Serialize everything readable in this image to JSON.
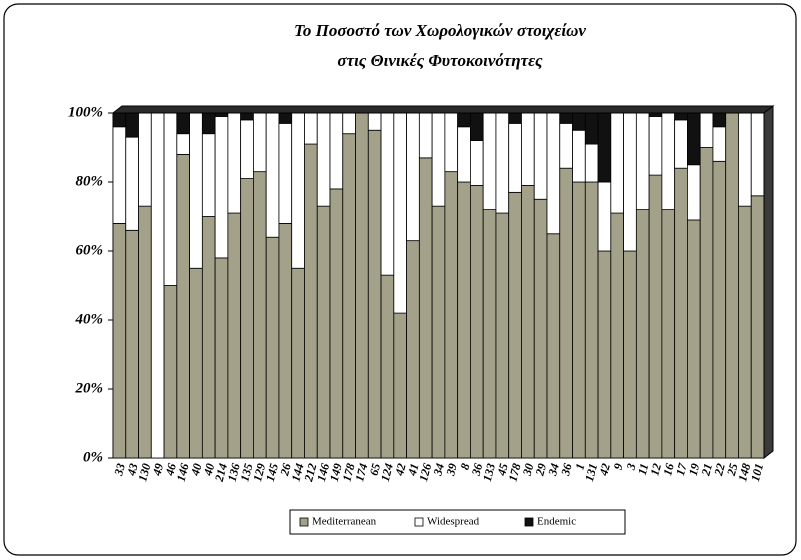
{
  "chart_data": {
    "type": "stacked_bar",
    "title": "Το Ποσοστό των Χωρολογικών στοιχείων",
    "subtitle": "στις Θινικές Φυτοκοινότητες",
    "categories": [
      "33",
      "43",
      "130",
      "49",
      "46",
      "146",
      "40",
      "40",
      "214",
      "136",
      "135",
      "129",
      "145",
      "26",
      "144",
      "212",
      "146",
      "149",
      "178",
      "174",
      "65",
      "124",
      "42",
      "41",
      "126",
      "34",
      "39",
      "8",
      "36",
      "133",
      "45",
      "178",
      "30",
      "29",
      "34",
      "36",
      "1",
      "131",
      "42",
      "9",
      "3",
      "11",
      "12",
      "16",
      "17",
      "19",
      "21",
      "22",
      "25",
      "148",
      "101"
    ],
    "series": [
      {
        "name": "Mediterranean",
        "color": "#a3a18a",
        "values": [
          68,
          66,
          73,
          0,
          50,
          88,
          55,
          70,
          58,
          71,
          81,
          83,
          64,
          68,
          55,
          91,
          73,
          78,
          94,
          100,
          95,
          53,
          42,
          63,
          87,
          73,
          83,
          80,
          79,
          72,
          71,
          77,
          79,
          75,
          65,
          84,
          80,
          80,
          60,
          71,
          60,
          72,
          82,
          72,
          84,
          69,
          90,
          86,
          100,
          73,
          76
        ]
      },
      {
        "name": "Widespread",
        "color": "#ffffff",
        "values": [
          28,
          27,
          27,
          100,
          50,
          6,
          45,
          24,
          41,
          29,
          17,
          17,
          36,
          29,
          45,
          9,
          27,
          22,
          6,
          0,
          5,
          47,
          58,
          37,
          13,
          27,
          17,
          16,
          13,
          28,
          29,
          20,
          21,
          25,
          35,
          13,
          15,
          11,
          20,
          29,
          40,
          28,
          17,
          28,
          14,
          16,
          10,
          10,
          0,
          27,
          24
        ]
      },
      {
        "name": "Endemic",
        "color": "#111111",
        "values": [
          4,
          7,
          0,
          0,
          0,
          6,
          0,
          6,
          1,
          0,
          2,
          0,
          0,
          3,
          0,
          0,
          0,
          0,
          0,
          0,
          0,
          0,
          0,
          0,
          0,
          0,
          0,
          4,
          8,
          0,
          0,
          3,
          0,
          0,
          0,
          3,
          5,
          9,
          20,
          0,
          0,
          0,
          1,
          0,
          2,
          15,
          0,
          4,
          0,
          0,
          0
        ]
      }
    ],
    "ylim": [
      0,
      100
    ],
    "yticks": [
      {
        "value": 0,
        "label": "0%"
      },
      {
        "value": 20,
        "label": "20%"
      },
      {
        "value": 40,
        "label": "40%"
      },
      {
        "value": 60,
        "label": "60%"
      },
      {
        "value": 80,
        "label": "80%"
      },
      {
        "value": 100,
        "label": "100%"
      }
    ],
    "legend": "bottom"
  }
}
